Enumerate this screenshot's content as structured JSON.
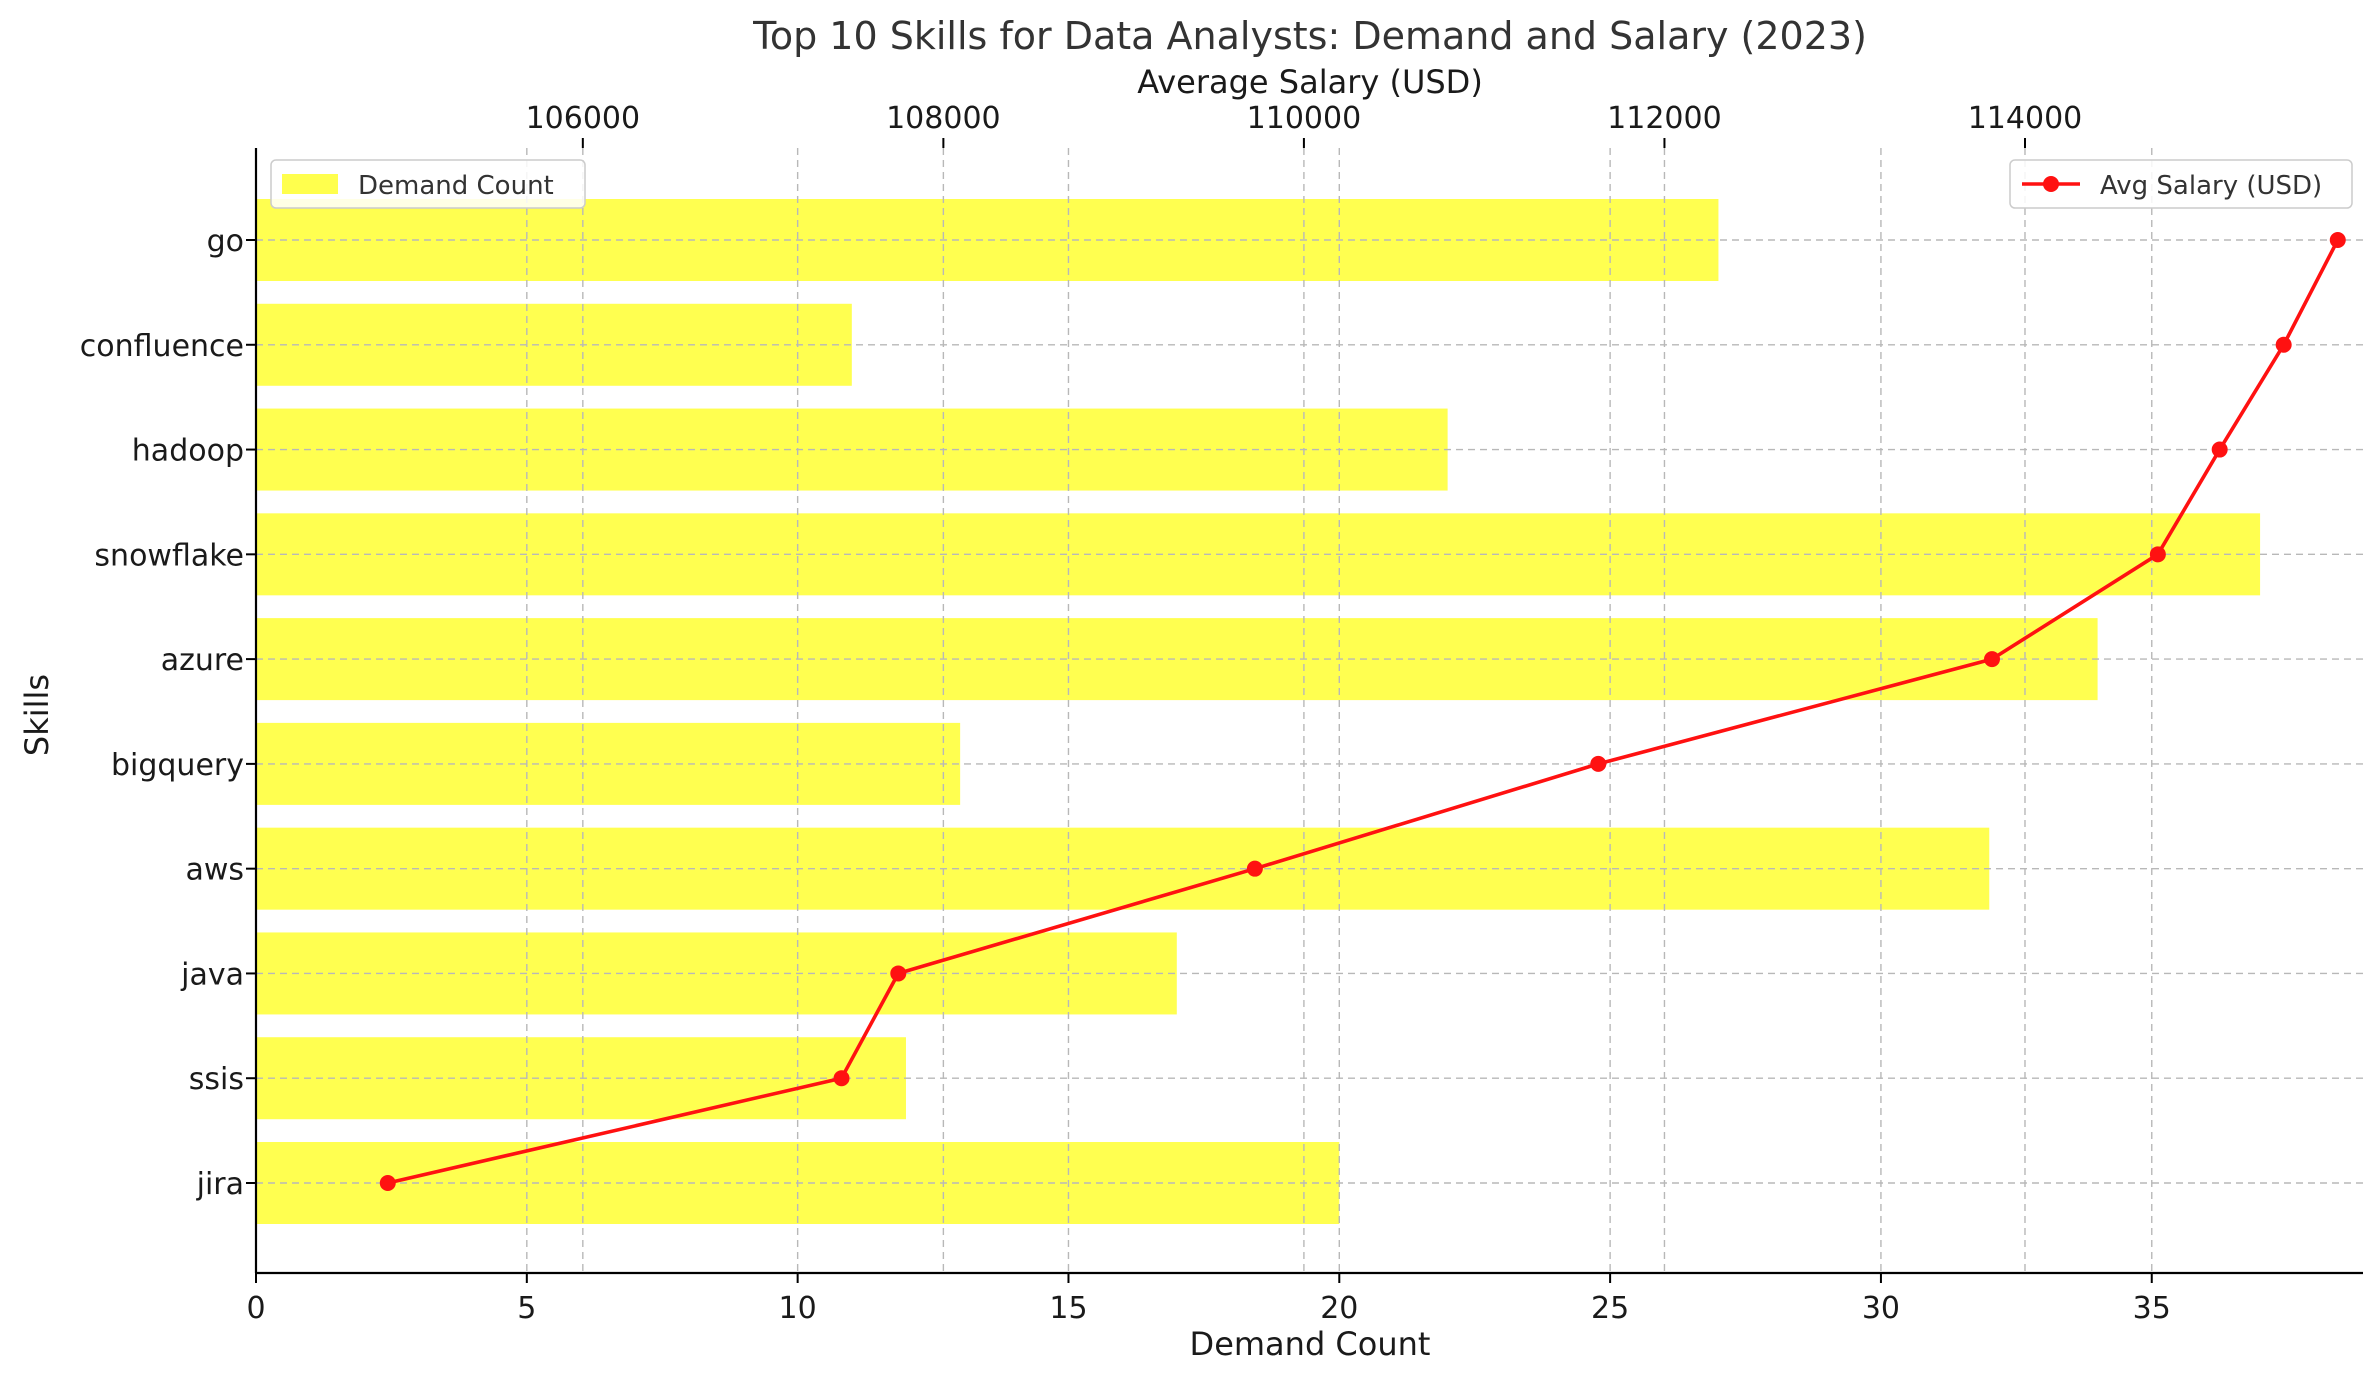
{
  "chart_data": {
    "type": "bar",
    "title": "Top 10 Skills for Data Analysts: Demand and Salary (2023)",
    "xlabel": "Demand Count",
    "x2label": "Average Salary (USD)",
    "ylabel": "Skills",
    "categories": [
      "jira",
      "ssis",
      "java",
      "aws",
      "bigquery",
      "azure",
      "snowflake",
      "hadoop",
      "confluence",
      "go"
    ],
    "series": [
      {
        "name": "Demand Count",
        "type": "bar",
        "orientation": "horizontal",
        "color": "#ffff4d",
        "values": [
          20,
          12,
          17,
          32,
          13,
          34,
          37,
          22,
          11,
          27
        ]
      },
      {
        "name": "Avg Salary (USD)",
        "type": "line",
        "color": "#ff1111",
        "marker": "circle",
        "values": [
          104918,
          107435,
          107750,
          109728,
          111633,
          113817,
          114737,
          115080,
          115435,
          115735
        ]
      }
    ],
    "xlim": [
      0,
      38.9
    ],
    "xticks": [
      0,
      5,
      10,
      15,
      20,
      25,
      30,
      35
    ],
    "x2lim": [
      104187,
      115875
    ],
    "x2ticks": [
      106000,
      108000,
      110000,
      112000,
      114000
    ],
    "grid": true,
    "legend_left": "top-left",
    "legend_right": "top-right"
  }
}
